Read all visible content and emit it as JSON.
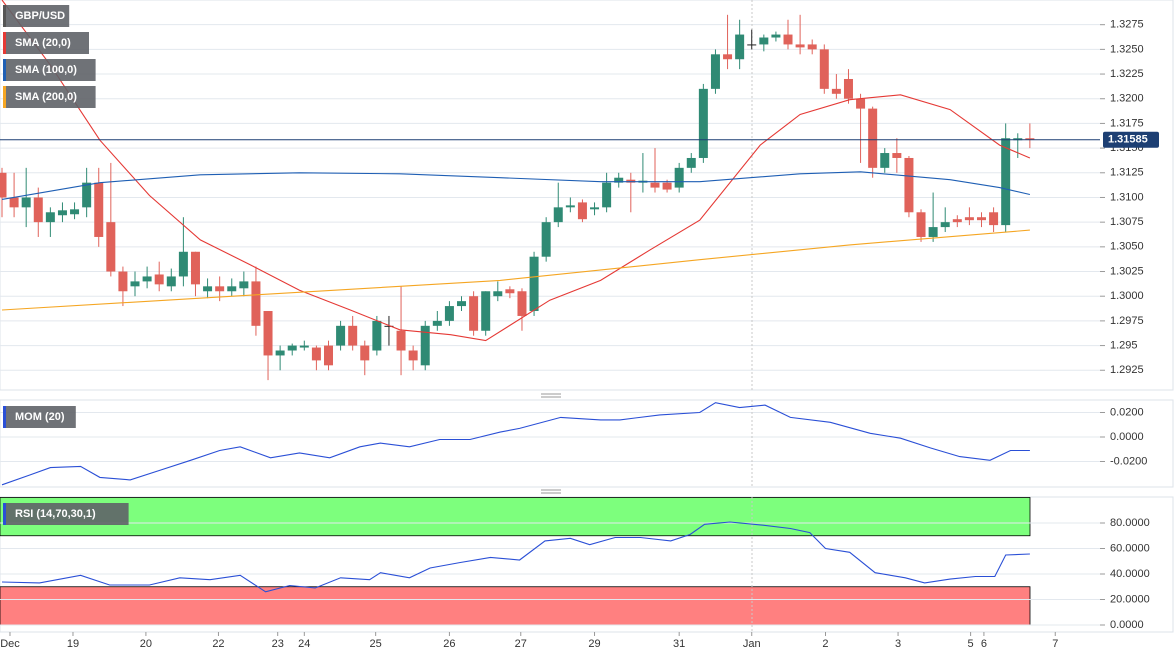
{
  "chart_data": [
    {
      "type": "candlestick",
      "title": "GBP/USD",
      "title_color": "#555555",
      "xlim": [
        -0.165,
        90.8
      ],
      "ylim": [
        1.2905,
        1.33
      ],
      "yticks": [
        1.2925,
        1.295,
        1.2975,
        {
          "value": 1.3,
          "label": "1.3000"
        },
        1.3025,
        {
          "value": 1.305,
          "label": "1.3050"
        },
        1.3075,
        {
          "value": 1.31,
          "label": "1.3100"
        },
        1.3125,
        {
          "value": 1.315,
          "label": "1.3150"
        },
        1.3175,
        {
          "value": 1.32,
          "label": "1.3200"
        },
        1.3225,
        {
          "value": 1.325,
          "label": "1.3250"
        },
        1.3275
      ],
      "grid": true,
      "up_color": "#2f8a74",
      "down_color": "#e0625a",
      "last_price": 1.31585,
      "last_price_color": "#1d3f73",
      "open": [
        1.3125,
        1.31,
        1.309,
        1.31,
        1.3075,
        1.3082,
        1.3083,
        1.309,
        1.3115,
        1.3075,
        1.3025,
        1.301,
        1.3015,
        1.3022,
        1.301,
        1.302,
        1.3045,
        1.3005,
        1.301,
        1.3005,
        1.3008,
        1.3015,
        1.2985,
        1.294,
        1.2945,
        1.2948,
        1.2948,
        1.295,
        1.295,
        1.297,
        1.295,
        1.2945,
        1.297,
        1.2965,
        1.2945,
        1.293,
        1.297,
        1.2975,
        1.299,
        1.3,
        1.2965,
        1.3,
        1.3007,
        1.3005,
        1.2985,
        1.304,
        1.3075,
        1.309,
        1.3095,
        1.3088,
        1.309,
        1.3115,
        1.3118,
        1.3115,
        1.3115,
        1.3115,
        1.311,
        1.313,
        1.314,
        1.321,
        1.3245,
        1.324,
        1.3255,
        1.3255,
        1.3262,
        1.3265,
        1.3255,
        1.3255,
        1.325,
        1.321,
        1.322,
        1.32,
        1.319,
        1.313,
        1.3145,
        1.314,
        1.3085,
        1.306,
        1.307,
        1.3078,
        1.308,
        1.308,
        1.3085,
        1.3072,
        1.3158,
        1.316
      ],
      "high": [
        1.313,
        1.3125,
        1.313,
        1.311,
        1.309,
        1.3095,
        1.3095,
        1.313,
        1.313,
        1.3135,
        1.303,
        1.3025,
        1.303,
        1.3035,
        1.3028,
        1.308,
        1.3045,
        1.3018,
        1.302,
        1.3018,
        1.3025,
        1.303,
        1.2985,
        1.295,
        1.2952,
        1.2955,
        1.295,
        1.2955,
        1.2975,
        1.298,
        1.2955,
        1.298,
        1.298,
        1.301,
        1.295,
        1.2975,
        1.2985,
        1.2995,
        1.3,
        1.3005,
        1.3005,
        1.3015,
        1.301,
        1.3008,
        1.3045,
        1.308,
        1.3115,
        1.31,
        1.3098,
        1.3095,
        1.3125,
        1.3125,
        1.3125,
        1.3145,
        1.315,
        1.3118,
        1.3135,
        1.3145,
        1.3215,
        1.325,
        1.3285,
        1.328,
        1.327,
        1.3265,
        1.3268,
        1.328,
        1.3285,
        1.326,
        1.3255,
        1.3225,
        1.323,
        1.3205,
        1.3192,
        1.315,
        1.316,
        1.3142,
        1.3088,
        1.3105,
        1.309,
        1.3082,
        1.309,
        1.3085,
        1.309,
        1.3175,
        1.3165,
        1.3175
      ],
      "low": [
        1.308,
        1.308,
        1.307,
        1.306,
        1.306,
        1.3075,
        1.3078,
        1.308,
        1.305,
        1.302,
        1.299,
        1.3,
        1.3008,
        1.3005,
        1.3005,
        1.301,
        1.3,
        1.2998,
        1.2995,
        1.3,
        1.3,
        1.296,
        1.2915,
        1.2925,
        1.294,
        1.2945,
        1.2925,
        1.2925,
        1.2945,
        1.2945,
        1.292,
        1.294,
        1.295,
        1.292,
        1.2925,
        1.2925,
        1.2965,
        1.297,
        1.2985,
        1.296,
        1.296,
        1.2995,
        1.2998,
        1.2965,
        1.298,
        1.3035,
        1.307,
        1.3085,
        1.3075,
        1.3082,
        1.3085,
        1.311,
        1.3085,
        1.3105,
        1.3105,
        1.3105,
        1.3105,
        1.3125,
        1.3135,
        1.3205,
        1.323,
        1.323,
        1.325,
        1.3248,
        1.3258,
        1.325,
        1.3245,
        1.3245,
        1.3205,
        1.32,
        1.3195,
        1.3135,
        1.312,
        1.3125,
        1.3125,
        1.308,
        1.3055,
        1.3055,
        1.3065,
        1.307,
        1.3072,
        1.307,
        1.3065,
        1.3065,
        1.314,
        1.315
      ],
      "close": [
        1.31,
        1.309,
        1.31,
        1.3075,
        1.3085,
        1.3087,
        1.3088,
        1.3115,
        1.306,
        1.3025,
        1.3005,
        1.3015,
        1.302,
        1.3012,
        1.302,
        1.3045,
        1.3012,
        1.301,
        1.3005,
        1.301,
        1.3015,
        1.297,
        1.294,
        1.2945,
        1.295,
        1.295,
        1.2935,
        1.293,
        1.297,
        1.295,
        1.2935,
        1.2975,
        1.297,
        1.2945,
        1.2935,
        1.297,
        1.2975,
        1.299,
        1.2995,
        1.2965,
        1.3005,
        1.3005,
        1.3003,
        1.298,
        1.304,
        1.3075,
        1.309,
        1.3092,
        1.3078,
        1.309,
        1.3115,
        1.312,
        1.3115,
        1.3117,
        1.311,
        1.3108,
        1.313,
        1.314,
        1.321,
        1.3245,
        1.324,
        1.3265,
        1.3255,
        1.3262,
        1.3265,
        1.3255,
        1.3252,
        1.325,
        1.321,
        1.3205,
        1.32,
        1.319,
        1.313,
        1.3145,
        1.314,
        1.3085,
        1.306,
        1.307,
        1.3075,
        1.3075,
        1.3077,
        1.3077,
        1.3072,
        1.316,
        1.316,
        1.31585
      ],
      "series": [
        {
          "name": "SMA (20,0)",
          "color": "#e53935",
          "x": [
            0,
            4.0,
            8.1,
            12.2,
            16.4,
            20.5,
            24.6,
            28.8,
            32.9,
            37.1,
            40.0,
            45.3,
            49.5,
            53.6,
            57.7,
            62.7,
            66.0,
            70.1,
            74.3,
            78.4,
            82.5,
            85.0
          ],
          "values": [
            1.33,
            1.3234,
            1.3158,
            1.3102,
            1.3057,
            1.3032,
            1.3006,
            1.2986,
            1.2966,
            1.2961,
            1.2955,
            1.2996,
            1.3016,
            1.3047,
            1.3077,
            1.3153,
            1.3184,
            1.3199,
            1.3204,
            1.3189,
            1.3153,
            1.314
          ]
        },
        {
          "name": "SMA (100,0)",
          "color": "#1f5fb4",
          "x": [
            0,
            8.1,
            16.4,
            24.6,
            32.9,
            41.2,
            49.5,
            57.7,
            66.0,
            71.0,
            78.4,
            82.5,
            85.0
          ],
          "values": [
            1.3098,
            1.3115,
            1.3123,
            1.3125,
            1.3124,
            1.312,
            1.3116,
            1.3116,
            1.3124,
            1.3126,
            1.3118,
            1.311,
            1.3103
          ]
        },
        {
          "name": "SMA (200,0)",
          "color": "#f5a623",
          "x": [
            0,
            20.5,
            41.2,
            57.7,
            70.1,
            85.0
          ],
          "values": [
            1.2986,
            1.3001,
            1.3016,
            1.3037,
            1.3052,
            1.3067
          ]
        }
      ]
    },
    {
      "type": "line",
      "xlim": [
        -0.165,
        90.8
      ],
      "ylim": [
        -0.0408,
        0.0302
      ],
      "yticks": [
        {
          "value": -0.02,
          "label": "-0.0200"
        },
        {
          "value": 0,
          "label": "0.0000"
        },
        {
          "value": 0.02,
          "label": "0.0200"
        }
      ],
      "grid": true,
      "series": [
        {
          "name": "MOM (20)",
          "color": "#2a4fd6",
          "x": [
            0,
            2.3,
            4.0,
            6.5,
            8.1,
            10.6,
            13.1,
            15.6,
            18.0,
            19.7,
            22.2,
            24.6,
            27.1,
            29.6,
            31.3,
            33.7,
            36.2,
            38.7,
            41.2,
            42.8,
            46.2,
            49.5,
            51.1,
            54.4,
            57.7,
            59.0,
            61.0,
            63.1,
            65.2,
            68.5,
            71.8,
            74.3,
            76.8,
            79.2,
            81.7,
            83.4,
            85.0
          ],
          "values": [
            -0.039,
            -0.031,
            -0.025,
            -0.024,
            -0.033,
            -0.035,
            -0.027,
            -0.019,
            -0.011,
            -0.008,
            -0.017,
            -0.013,
            -0.017,
            -0.008,
            -0.005,
            -0.008,
            -0.002,
            -0.002,
            0.004,
            0.007,
            0.016,
            0.014,
            0.014,
            0.018,
            0.02,
            0.028,
            0.024,
            0.026,
            0.016,
            0.012,
            0.003,
            -0.001,
            -0.009,
            -0.016,
            -0.019,
            -0.011,
            -0.011
          ]
        }
      ]
    },
    {
      "type": "line",
      "xlim": [
        -0.165,
        90.8
      ],
      "ylim": [
        -5.5,
        100.4
      ],
      "yticks": [
        {
          "value": 0,
          "label": "0.0000"
        },
        {
          "value": 20,
          "label": "20.0000"
        },
        {
          "value": 40,
          "label": "40.0000"
        },
        {
          "value": 60,
          "label": "60.0000"
        },
        {
          "value": 80,
          "label": "80.0000"
        }
      ],
      "grid": true,
      "bands": [
        {
          "from": 70,
          "to": 100,
          "color": "#7dff7d"
        },
        {
          "from": 0,
          "to": 30,
          "color": "#ff8080"
        }
      ],
      "xticks": [
        {
          "value": 0.66,
          "label": "Dec"
        },
        {
          "value": 5.87,
          "label": "19"
        },
        {
          "value": 11.9,
          "label": "20"
        },
        {
          "value": 17.9,
          "label": "22"
        },
        {
          "value": 22.8,
          "label": "23"
        },
        {
          "value": 25.0,
          "label": "24"
        },
        {
          "value": 30.9,
          "label": "25"
        },
        {
          "value": 37.0,
          "label": "26"
        },
        {
          "value": 42.9,
          "label": "27"
        },
        {
          "value": 49.0,
          "label": "29"
        },
        {
          "value": 56.0,
          "label": "31"
        },
        {
          "value": 62.0,
          "label": "Jan"
        },
        {
          "value": 68.1,
          "label": "2"
        },
        {
          "value": 74.1,
          "label": "3"
        },
        {
          "value": 80.1,
          "label": "5"
        },
        {
          "value": 81.2,
          "label": "6"
        },
        {
          "value": 87.1,
          "label": "7"
        }
      ],
      "series": [
        {
          "name": "RSI (14,70,30,1)",
          "color": "#2a4fd6",
          "x": [
            0,
            3.1,
            6.5,
            8.9,
            12.2,
            14.7,
            17.2,
            19.7,
            21.8,
            23.8,
            25.9,
            28.0,
            30.4,
            31.3,
            33.7,
            35.4,
            37.9,
            40.4,
            42.8,
            44.9,
            47.0,
            48.6,
            50.7,
            52.8,
            55.3,
            56.9,
            58.1,
            60.2,
            62.7,
            65.2,
            66.8,
            68.1,
            70.1,
            72.2,
            74.7,
            76.3,
            78.4,
            80.5,
            82.1,
            83.0,
            85.0
          ],
          "values": [
            33.7,
            33,
            39,
            31.4,
            31.4,
            37,
            35.5,
            39,
            26,
            31,
            29,
            37,
            35.5,
            41,
            37,
            44.7,
            49,
            53,
            51,
            66,
            68,
            63,
            68.6,
            68.6,
            66,
            71,
            79,
            80.8,
            78.5,
            75.7,
            72.5,
            60,
            57,
            41,
            37,
            33,
            36,
            38,
            38,
            54.9,
            55.7
          ]
        }
      ]
    }
  ]
}
